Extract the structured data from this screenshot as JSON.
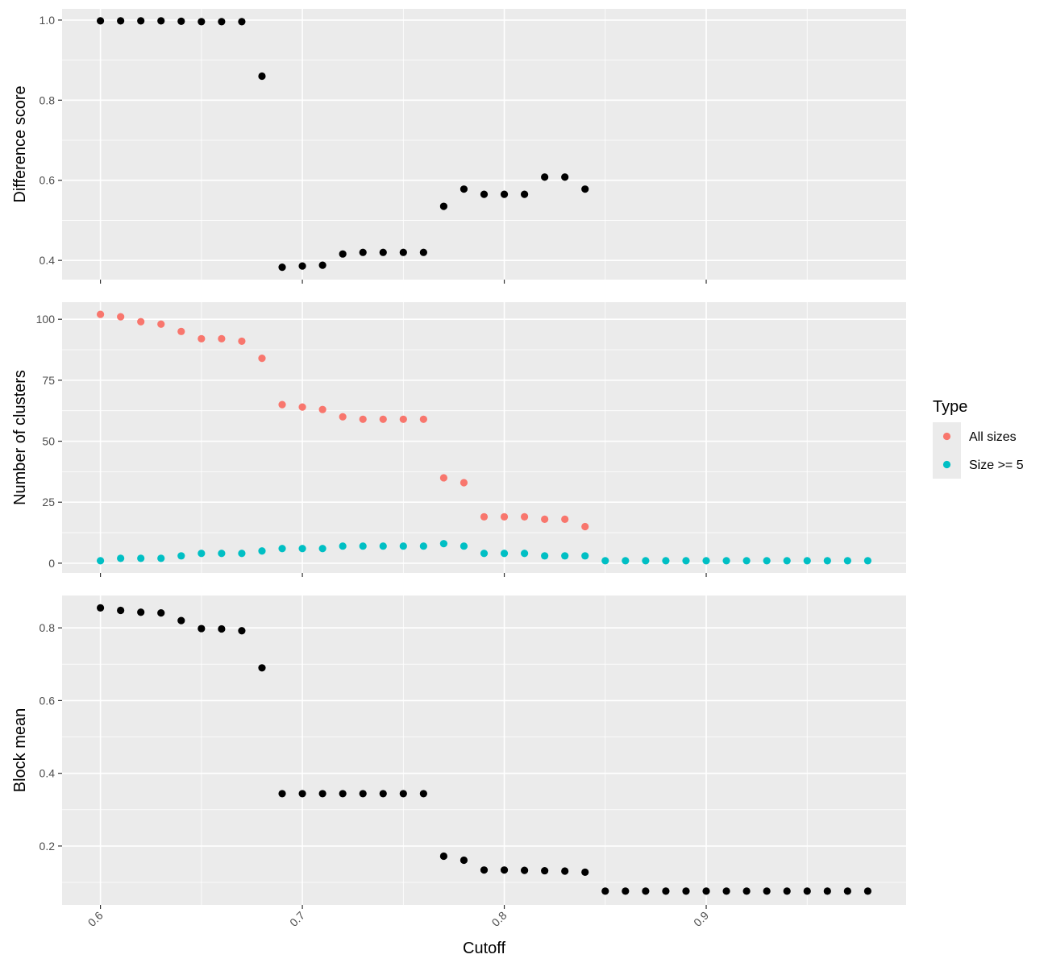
{
  "chart_data": [
    {
      "type": "scatter",
      "panel": "top",
      "title": "",
      "xlabel": "",
      "ylabel": "Difference score",
      "xlim": [
        0.581,
        0.999
      ],
      "ylim": [
        0.352,
        1.028
      ],
      "xticks": [
        0.6,
        0.7,
        0.8,
        0.9
      ],
      "yticks": [
        0.4,
        0.6,
        0.8,
        1.0
      ],
      "ytick_labels": [
        "0.4",
        "0.6",
        "0.8",
        "1.0"
      ],
      "grid": true,
      "series": [
        {
          "color": "#000000",
          "x": [
            0.6,
            0.61,
            0.62,
            0.63,
            0.64,
            0.65,
            0.66,
            0.67,
            0.68,
            0.69,
            0.7,
            0.71,
            0.72,
            0.73,
            0.74,
            0.75,
            0.76,
            0.77,
            0.78,
            0.79,
            0.8,
            0.81,
            0.82,
            0.83,
            0.84
          ],
          "y": [
            0.998,
            0.998,
            0.998,
            0.998,
            0.997,
            0.996,
            0.996,
            0.996,
            0.86,
            0.383,
            0.386,
            0.388,
            0.416,
            0.42,
            0.42,
            0.42,
            0.42,
            0.535,
            0.578,
            0.565,
            0.565,
            0.565,
            0.608,
            0.608,
            0.578
          ]
        }
      ]
    },
    {
      "type": "scatter",
      "panel": "middle",
      "title": "",
      "xlabel": "",
      "ylabel": "Number of clusters",
      "xlim": [
        0.581,
        0.999
      ],
      "ylim": [
        -4,
        107
      ],
      "xticks": [
        0.6,
        0.7,
        0.8,
        0.9
      ],
      "yticks": [
        0,
        25,
        50,
        75,
        100
      ],
      "ytick_labels": [
        "0",
        "25",
        "50",
        "75",
        "100"
      ],
      "grid": true,
      "legend": {
        "title": "Type",
        "placement": "right"
      },
      "series": [
        {
          "name": "All sizes",
          "color": "#F8766D",
          "x": [
            0.6,
            0.61,
            0.62,
            0.63,
            0.64,
            0.65,
            0.66,
            0.67,
            0.68,
            0.69,
            0.7,
            0.71,
            0.72,
            0.73,
            0.74,
            0.75,
            0.76,
            0.77,
            0.78,
            0.79,
            0.8,
            0.81,
            0.82,
            0.83,
            0.84
          ],
          "y": [
            102,
            101,
            99,
            98,
            95,
            92,
            92,
            91,
            84,
            65,
            64,
            63,
            60,
            59,
            59,
            59,
            59,
            35,
            33,
            19,
            19,
            19,
            18,
            18,
            15
          ]
        },
        {
          "name": "Size >= 5",
          "color": "#00BFC4",
          "x": [
            0.6,
            0.61,
            0.62,
            0.63,
            0.64,
            0.65,
            0.66,
            0.67,
            0.68,
            0.69,
            0.7,
            0.71,
            0.72,
            0.73,
            0.74,
            0.75,
            0.76,
            0.77,
            0.78,
            0.79,
            0.8,
            0.81,
            0.82,
            0.83,
            0.84,
            0.85,
            0.86,
            0.87,
            0.88,
            0.89,
            0.9,
            0.91,
            0.92,
            0.93,
            0.94,
            0.95,
            0.96,
            0.97,
            0.98
          ],
          "y": [
            1,
            2,
            2,
            2,
            3,
            4,
            4,
            4,
            5,
            6,
            6,
            6,
            7,
            7,
            7,
            7,
            7,
            8,
            7,
            4,
            4,
            4,
            3,
            3,
            3,
            1,
            1,
            1,
            1,
            1,
            1,
            1,
            1,
            1,
            1,
            1,
            1,
            1,
            1
          ]
        }
      ]
    },
    {
      "type": "scatter",
      "panel": "bottom",
      "title": "",
      "xlabel": "Cutoff",
      "ylabel": "Block mean",
      "xlim": [
        0.581,
        0.999
      ],
      "ylim": [
        0.038,
        0.889
      ],
      "xticks": [
        0.6,
        0.7,
        0.8,
        0.9
      ],
      "xtick_labels": [
        "0.6",
        "0.7",
        "0.8",
        "0.9"
      ],
      "yticks": [
        0.2,
        0.4,
        0.6,
        0.8
      ],
      "ytick_labels": [
        "0.2",
        "0.4",
        "0.6",
        "0.8"
      ],
      "grid": true,
      "series": [
        {
          "color": "#000000",
          "x": [
            0.6,
            0.61,
            0.62,
            0.63,
            0.64,
            0.65,
            0.66,
            0.67,
            0.68,
            0.69,
            0.7,
            0.71,
            0.72,
            0.73,
            0.74,
            0.75,
            0.76,
            0.77,
            0.78,
            0.79,
            0.8,
            0.81,
            0.82,
            0.83,
            0.84,
            0.85,
            0.86,
            0.87,
            0.88,
            0.89,
            0.9,
            0.91,
            0.92,
            0.93,
            0.94,
            0.95,
            0.96,
            0.97,
            0.98
          ],
          "y": [
            0.855,
            0.848,
            0.843,
            0.841,
            0.82,
            0.798,
            0.797,
            0.792,
            0.69,
            0.344,
            0.344,
            0.344,
            0.344,
            0.344,
            0.344,
            0.344,
            0.344,
            0.172,
            0.161,
            0.134,
            0.134,
            0.133,
            0.132,
            0.131,
            0.128,
            0.076,
            0.076,
            0.076,
            0.076,
            0.076,
            0.076,
            0.076,
            0.076,
            0.076,
            0.076,
            0.076,
            0.076,
            0.076,
            0.076
          ]
        }
      ]
    }
  ]
}
